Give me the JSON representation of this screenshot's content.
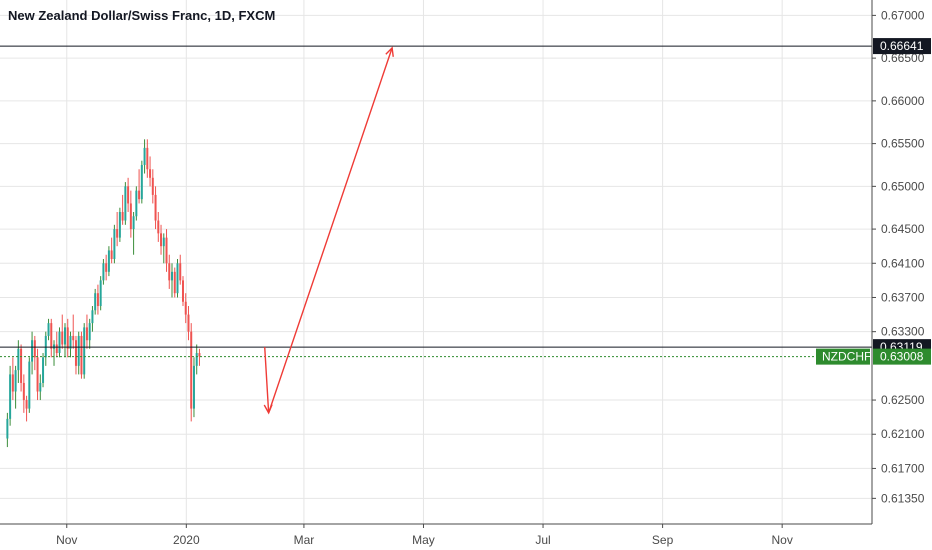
{
  "colors": {
    "up": "#26a69a",
    "up_wick": "#3a8d3a",
    "down": "#ef5350",
    "grid": "#e6e6e6",
    "axis": "#4a4a4a",
    "level_line": "#131722",
    "last_price": "#2e8b2e",
    "arrow": "#ef3b36"
  },
  "chart_data": {
    "type": "candlestick",
    "title": "New Zealand Dollar/Swiss Franc, 1D, FXCM",
    "symbol_label": "NZDCHF",
    "ylim": [
      0.6105,
      0.6718
    ],
    "y_ticks": [
      "0.67000",
      "0.66500",
      "0.66000",
      "0.65500",
      "0.65000",
      "0.64500",
      "0.64100",
      "0.63700",
      "0.63300",
      "0.62500",
      "0.62100",
      "0.61700",
      "0.61350"
    ],
    "y_tick_values": [
      0.67,
      0.665,
      0.66,
      0.655,
      0.65,
      0.645,
      0.641,
      0.637,
      0.633,
      0.625,
      0.621,
      0.617,
      0.6135
    ],
    "x_ticks": [
      "Nov",
      "2020",
      "Mar",
      "May",
      "Jul",
      "Sep",
      "Nov"
    ],
    "x_tick_days": [
      31,
      92,
      152,
      213,
      274,
      335,
      396
    ],
    "price_levels": [
      {
        "label": "0.66641",
        "value": 0.66641
      },
      {
        "label": "0.63119",
        "value": 0.63119
      }
    ],
    "last_price": {
      "label": "0.63008",
      "value": 0.63008
    },
    "projection_path": [
      {
        "day": 132,
        "price": 0.6312
      },
      {
        "day": 134,
        "price": 0.6235
      },
      {
        "day": 197,
        "price": 0.6662
      }
    ],
    "candles_day_start": 0,
    "candles": [
      [
        0.6205,
        0.6235,
        0.6195,
        0.6228
      ],
      [
        0.6228,
        0.629,
        0.622,
        0.628
      ],
      [
        0.628,
        0.63,
        0.625,
        0.626
      ],
      [
        0.626,
        0.629,
        0.624,
        0.6285
      ],
      [
        0.6285,
        0.632,
        0.627,
        0.631
      ],
      [
        0.631,
        0.6315,
        0.626,
        0.627
      ],
      [
        0.627,
        0.628,
        0.6235,
        0.625
      ],
      [
        0.625,
        0.6255,
        0.6225,
        0.624
      ],
      [
        0.624,
        0.63,
        0.6235,
        0.6295
      ],
      [
        0.6295,
        0.633,
        0.628,
        0.632
      ],
      [
        0.632,
        0.6325,
        0.6285,
        0.63
      ],
      [
        0.63,
        0.631,
        0.625,
        0.626
      ],
      [
        0.626,
        0.628,
        0.625,
        0.627
      ],
      [
        0.627,
        0.6305,
        0.6265,
        0.63
      ],
      [
        0.63,
        0.633,
        0.629,
        0.6325
      ],
      [
        0.6325,
        0.6345,
        0.632,
        0.634
      ],
      [
        0.634,
        0.6345,
        0.63,
        0.631
      ],
      [
        0.631,
        0.632,
        0.629,
        0.6315
      ],
      [
        0.6315,
        0.633,
        0.63,
        0.6305
      ],
      [
        0.6305,
        0.6335,
        0.63,
        0.633
      ],
      [
        0.633,
        0.635,
        0.631,
        0.6315
      ],
      [
        0.6315,
        0.634,
        0.63,
        0.6335
      ],
      [
        0.6335,
        0.6345,
        0.63,
        0.631
      ],
      [
        0.631,
        0.633,
        0.63,
        0.6325
      ],
      [
        0.6325,
        0.635,
        0.631,
        0.632
      ],
      [
        0.632,
        0.6325,
        0.628,
        0.629
      ],
      [
        0.629,
        0.633,
        0.628,
        0.6325
      ],
      [
        0.6325,
        0.633,
        0.6275,
        0.628
      ],
      [
        0.628,
        0.634,
        0.6275,
        0.6335
      ],
      [
        0.6335,
        0.635,
        0.631,
        0.632
      ],
      [
        0.632,
        0.6345,
        0.631,
        0.634
      ],
      [
        0.634,
        0.636,
        0.633,
        0.6355
      ],
      [
        0.6355,
        0.638,
        0.635,
        0.6375
      ],
      [
        0.6375,
        0.6385,
        0.635,
        0.636
      ],
      [
        0.636,
        0.6395,
        0.6355,
        0.639
      ],
      [
        0.639,
        0.6415,
        0.6385,
        0.641
      ],
      [
        0.641,
        0.642,
        0.639,
        0.64
      ],
      [
        0.64,
        0.643,
        0.6395,
        0.6425
      ],
      [
        0.6425,
        0.644,
        0.641,
        0.6415
      ],
      [
        0.6415,
        0.6455,
        0.641,
        0.645
      ],
      [
        0.645,
        0.647,
        0.643,
        0.644
      ],
      [
        0.644,
        0.6475,
        0.6435,
        0.647
      ],
      [
        0.647,
        0.649,
        0.6455,
        0.646
      ],
      [
        0.646,
        0.6505,
        0.6455,
        0.65
      ],
      [
        0.65,
        0.651,
        0.647,
        0.648
      ],
      [
        0.648,
        0.6495,
        0.644,
        0.645
      ],
      [
        0.645,
        0.647,
        0.642,
        0.6465
      ],
      [
        0.6465,
        0.65,
        0.646,
        0.6495
      ],
      [
        0.6495,
        0.652,
        0.648,
        0.6485
      ],
      [
        0.6485,
        0.653,
        0.648,
        0.6525
      ],
      [
        0.6525,
        0.6555,
        0.6515,
        0.6545
      ],
      [
        0.6545,
        0.6555,
        0.651,
        0.652
      ],
      [
        0.652,
        0.6535,
        0.65,
        0.651
      ],
      [
        0.651,
        0.652,
        0.648,
        0.649
      ],
      [
        0.649,
        0.65,
        0.645,
        0.646
      ],
      [
        0.646,
        0.647,
        0.6435,
        0.6445
      ],
      [
        0.6445,
        0.6455,
        0.642,
        0.643
      ],
      [
        0.643,
        0.6445,
        0.641,
        0.644
      ],
      [
        0.644,
        0.645,
        0.64,
        0.641
      ],
      [
        0.641,
        0.642,
        0.638,
        0.639
      ],
      [
        0.639,
        0.641,
        0.637,
        0.64
      ],
      [
        0.64,
        0.6405,
        0.637,
        0.6375
      ],
      [
        0.6375,
        0.6415,
        0.637,
        0.641
      ],
      [
        0.641,
        0.642,
        0.6385,
        0.639
      ],
      [
        0.639,
        0.6395,
        0.636,
        0.6365
      ],
      [
        0.6365,
        0.6375,
        0.634,
        0.635
      ],
      [
        0.635,
        0.636,
        0.632,
        0.633
      ],
      [
        0.633,
        0.634,
        0.6225,
        0.624
      ],
      [
        0.624,
        0.63,
        0.623,
        0.629
      ],
      [
        0.629,
        0.6315,
        0.628,
        0.6305
      ],
      [
        0.6305,
        0.631,
        0.629,
        0.6301
      ]
    ]
  }
}
